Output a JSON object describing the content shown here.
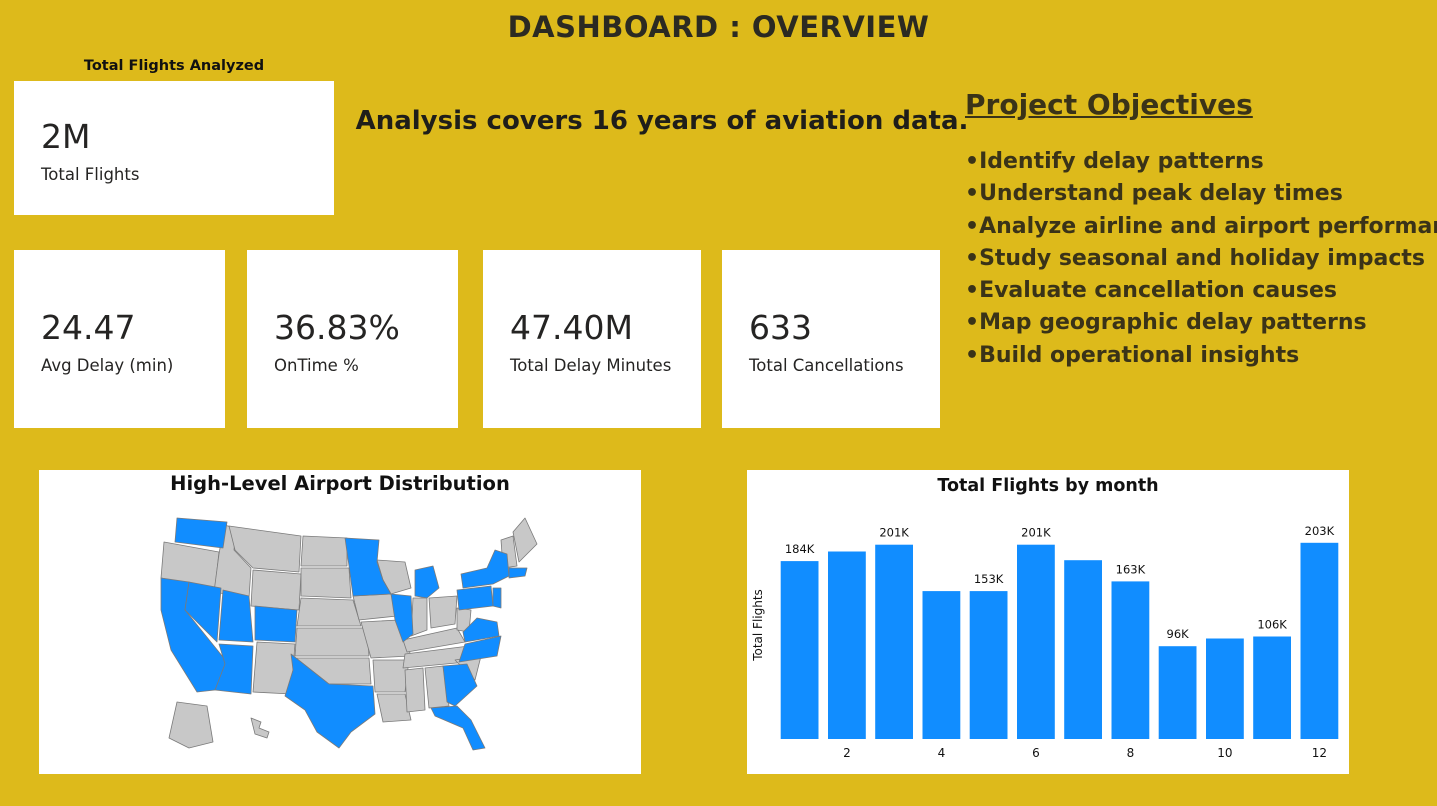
{
  "header": {
    "title": "DASHBOARD : OVERVIEW"
  },
  "total_card": {
    "caption": "Total Flights Analyzed",
    "value": "2M",
    "label": "Total Flights"
  },
  "headline": "Analysis covers 16 years of aviation data.",
  "kpis": [
    {
      "value": "24.47",
      "label": "Avg Delay (min)"
    },
    {
      "value": "36.83%",
      "label": "OnTime %"
    },
    {
      "value": "47.40M",
      "label": "Total Delay Minutes"
    },
    {
      "value": "633",
      "label": "Total Cancellations"
    }
  ],
  "objectives": {
    "title": "Project Objectives",
    "items": [
      "Identify delay patterns",
      "Understand peak delay times",
      "Analyze airline and airport performance",
      "Study seasonal and holiday impacts",
      "Evaluate cancellation causes",
      "Map geographic delay patterns",
      "Build operational insights"
    ]
  },
  "map_panel": {
    "title": "High-Level Airport Distribution",
    "highlight_color": "#118DFF",
    "base_color": "#C8C8C8"
  },
  "chart_data": {
    "type": "bar",
    "title": "Total Flights by month",
    "ylabel": "Total Flights",
    "xlabel": "",
    "categories": [
      1,
      2,
      3,
      4,
      5,
      6,
      7,
      8,
      9,
      10,
      11,
      12
    ],
    "x_tick_labels": [
      "",
      "2",
      "",
      "4",
      "",
      "6",
      "",
      "8",
      "",
      "10",
      "",
      "12"
    ],
    "values": [
      184000,
      194000,
      201000,
      153000,
      153000,
      201000,
      185000,
      163000,
      96000,
      104000,
      106000,
      203000
    ],
    "data_labels": [
      "184K",
      "",
      "201K",
      "",
      "153K",
      "201K",
      "",
      "163K",
      "96K",
      "",
      "106K",
      "203K"
    ],
    "ylim": [
      0,
      210000
    ],
    "bar_color": "#118DFF",
    "grid": false
  }
}
